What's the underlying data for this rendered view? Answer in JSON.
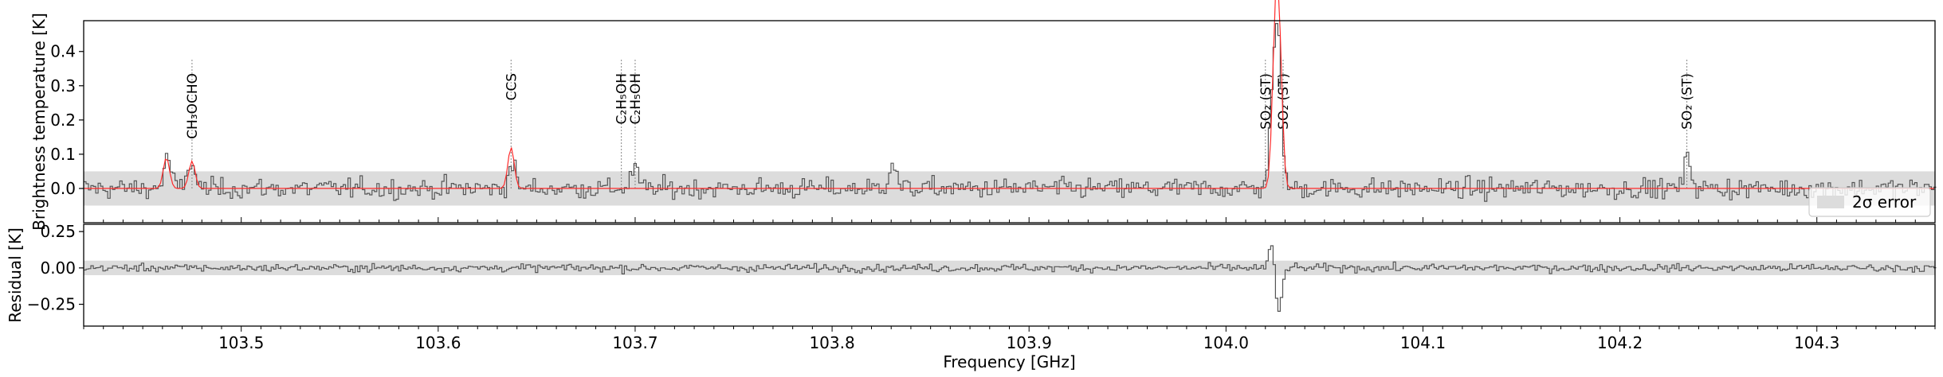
{
  "chart_data": [
    {
      "type": "line",
      "panel": "spectrum",
      "ylabel": "Brightness temperature [K]",
      "xlim": [
        103.42,
        104.36
      ],
      "ylim": [
        -0.1,
        0.49
      ],
      "yticks": [
        0.0,
        0.1,
        0.2,
        0.3,
        0.4
      ],
      "ytick_labels": [
        "0.0",
        "0.1",
        "0.2",
        "0.3",
        "0.4"
      ],
      "error_band": [
        -0.05,
        0.05
      ],
      "legend": {
        "label": "2σ error",
        "placement": "lower right"
      },
      "series": [
        {
          "role": "observed",
          "color": "#555555",
          "step": true,
          "noise_sigma": 0.025
        },
        {
          "role": "model",
          "color": "#ff2a2a",
          "peaks": [
            {
              "x": 103.462,
              "y": 0.09
            },
            {
              "x": 103.475,
              "y": 0.08
            },
            {
              "x": 103.637,
              "y": 0.12
            },
            {
              "x": 104.025,
              "y": 0.38
            },
            {
              "x": 104.027,
              "y": 0.37
            }
          ]
        }
      ],
      "observed_features": [
        {
          "x": 103.462,
          "y": 0.09
        },
        {
          "x": 103.474,
          "y": 0.08
        },
        {
          "x": 103.637,
          "y": 0.07
        },
        {
          "x": 103.699,
          "y": 0.06
        },
        {
          "x": 103.83,
          "y": 0.08
        },
        {
          "x": 104.023,
          "y": 0.22
        },
        {
          "x": 104.026,
          "y": 0.4
        },
        {
          "x": 104.234,
          "y": 0.09
        }
      ],
      "line_ids": [
        {
          "x": 103.475,
          "label": "CH₃OCHO"
        },
        {
          "x": 103.637,
          "label": "CCS"
        },
        {
          "x": 103.693,
          "label": "C₂H₅OH"
        },
        {
          "x": 103.7,
          "label": "C₂H₅OH"
        },
        {
          "x": 104.02,
          "label": "SO₂ (ST)"
        },
        {
          "x": 104.029,
          "label": "SO₂ (ST)"
        },
        {
          "x": 104.234,
          "label": "SO₂ (ST)"
        }
      ]
    },
    {
      "type": "line",
      "panel": "residual",
      "xlabel": "Frequency [GHz]",
      "ylabel": "Residual [K]",
      "xlim": [
        103.42,
        104.36
      ],
      "ylim": [
        -0.4,
        0.3
      ],
      "yticks": [
        0.25,
        0.0,
        -0.25
      ],
      "ytick_labels": [
        "0.25",
        "0.00",
        "−0.25"
      ],
      "error_band": [
        -0.05,
        0.05
      ],
      "xticks": [
        103.5,
        103.6,
        103.7,
        103.8,
        103.9,
        104.0,
        104.1,
        104.2,
        104.3
      ],
      "xtick_labels": [
        "103.5",
        "103.6",
        "103.7",
        "103.8",
        "103.9",
        "104.0",
        "104.1",
        "104.2",
        "104.3"
      ],
      "series": [
        {
          "role": "residual",
          "color": "#555555",
          "step": true,
          "noise_sigma": 0.022
        }
      ],
      "residual_features": [
        {
          "x": 104.023,
          "y": 0.18
        },
        {
          "x": 104.026,
          "y": -0.33
        }
      ]
    }
  ]
}
